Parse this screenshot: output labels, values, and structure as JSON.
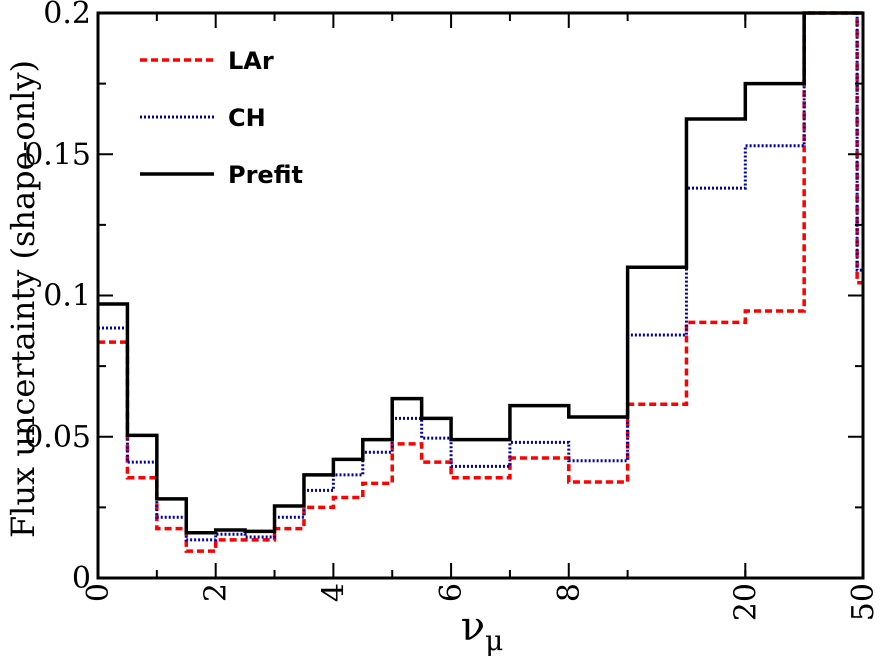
{
  "chart_data": {
    "type": "line",
    "style": "step-histogram",
    "xlabel": "ν",
    "xlabel_subscript": "μ",
    "ylabel": "Flux uncertainty (shape-only)",
    "ylim": [
      0,
      0.2
    ],
    "yticks": [
      {
        "value": 0,
        "label": "0"
      },
      {
        "value": 0.05,
        "label": "0.05"
      },
      {
        "value": 0.1,
        "label": "0.1"
      },
      {
        "value": 0.15,
        "label": "0.15"
      },
      {
        "value": 0.2,
        "label": "0.2"
      }
    ],
    "xticks": [
      {
        "bin_edge": 0,
        "label": "0"
      },
      {
        "bin_edge": 2,
        "label": "2"
      },
      {
        "bin_edge": 4,
        "label": "4"
      },
      {
        "bin_edge": 6,
        "label": "6"
      },
      {
        "bin_edge": 8,
        "label": "8"
      },
      {
        "bin_edge": 11,
        "label": "20"
      },
      {
        "bin_edge": 13,
        "label": "50"
      }
    ],
    "bin_edges": [
      0,
      0.5,
      1,
      1.5,
      2,
      2.5,
      3,
      3.5,
      4,
      4.5,
      5,
      5.5,
      6,
      7,
      8,
      9,
      10,
      11,
      12,
      12.9,
      13
    ],
    "legend_position": "top-left",
    "grid": false,
    "series": [
      {
        "name": "LAr",
        "color": "#ff0000",
        "dash": "dashed",
        "values": [
          0.0835,
          0.0355,
          0.0175,
          0.0095,
          0.0135,
          0.0135,
          0.0175,
          0.025,
          0.0285,
          0.0335,
          0.0475,
          0.041,
          0.0355,
          0.0425,
          0.034,
          0.0615,
          0.0905,
          0.0945,
          0.2,
          0.1045
        ]
      },
      {
        "name": "CH",
        "color": "#0000aa",
        "dash": "dotted",
        "values": [
          0.0885,
          0.041,
          0.0215,
          0.0135,
          0.0155,
          0.0145,
          0.0215,
          0.031,
          0.0365,
          0.0445,
          0.0565,
          0.0495,
          0.0395,
          0.048,
          0.0415,
          0.086,
          0.138,
          0.153,
          0.2,
          0.109
        ]
      },
      {
        "name": "Prefit",
        "color": "#000000",
        "dash": "solid",
        "values": [
          0.097,
          0.0505,
          0.028,
          0.016,
          0.017,
          0.0165,
          0.0255,
          0.0365,
          0.042,
          0.049,
          0.0635,
          0.0565,
          0.049,
          0.061,
          0.057,
          0.11,
          0.1625,
          0.175,
          0.2,
          0.2
        ]
      }
    ]
  }
}
